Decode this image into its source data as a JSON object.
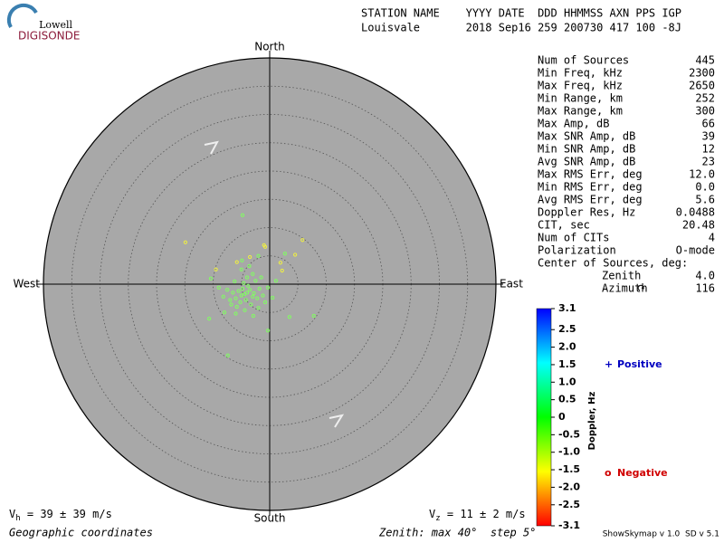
{
  "logo": {
    "top": "Lowell",
    "bottom": "DIGISONDE"
  },
  "header": {
    "line1": "STATION NAME    YYYY DATE  DDD HHMMSS AXN PPS IGP",
    "line2": "Louisvale       2018 Sep16 259 200730 417 100 -8J"
  },
  "stats": [
    {
      "label": "Num of Sources",
      "value": "445"
    },
    {
      "label": "Min Freq, kHz",
      "value": "2300"
    },
    {
      "label": "Max Freq, kHz",
      "value": "2650"
    },
    {
      "label": "Min Range, km",
      "value": "252"
    },
    {
      "label": "Max Range, km",
      "value": "300"
    },
    {
      "label": "Max Amp, dB",
      "value": "66"
    },
    {
      "label": "Max SNR Amp, dB",
      "value": "39"
    },
    {
      "label": "Min SNR Amp, dB",
      "value": "12"
    },
    {
      "label": "Avg SNR Amp, dB",
      "value": "23"
    },
    {
      "label": "Max RMS Err, deg",
      "value": "12.0"
    },
    {
      "label": "Min RMS Err, deg",
      "value": "0.0"
    },
    {
      "label": "Avg RMS Err, deg",
      "value": "5.6"
    },
    {
      "label": "Doppler Res, Hz",
      "value": "0.0488"
    },
    {
      "label": "CIT, sec",
      "value": "20.48"
    },
    {
      "label": "Num of CITs",
      "value": "4"
    },
    {
      "label": "Polarization",
      "value": "O-mode"
    }
  ],
  "center": {
    "title": "Center of Sources, deg:",
    "rows": [
      {
        "label": "Zenith",
        "value": "4.0"
      },
      {
        "label": "Azimuth",
        "value": "116"
      }
    ]
  },
  "colorbar": {
    "label": "Doppler, Hz",
    "lim": [
      -3.1,
      3.1
    ],
    "ticks": [
      3.1,
      2.5,
      {
        "value": 2,
        "label": "2.0"
      },
      1.5,
      {
        "value": 1,
        "label": "1.0"
      },
      0.5,
      0,
      -0.5,
      {
        "value": -1,
        "label": "-1.0"
      },
      -1.5,
      {
        "value": -2,
        "label": "-2.0"
      },
      -2.5,
      -3.1
    ],
    "colors": [
      "#0000ff",
      "#00ffff",
      "#00ff00",
      "#ffff00",
      "#ff0000"
    ]
  },
  "legend": {
    "positive": {
      "symbol": "+",
      "text": "Positive",
      "color": "#0000c0"
    },
    "negative": {
      "symbol": "o",
      "text": "Negative",
      "color": "#d00000"
    }
  },
  "footer": {
    "vh": {
      "symbol": "V",
      "sub": "h",
      "text": " = 39 ± 39 m/s"
    },
    "vz": {
      "symbol": "V",
      "sub": "z",
      "text": " = 11 ± 2 m/s"
    },
    "coords": "Geographic coordinates",
    "zenith": "Zenith: max 40°  step 5°",
    "version": "ShowSkymap v 1.0  SD v 5.1"
  },
  "chart_data": {
    "type": "scatter",
    "directions": {
      "north": "North",
      "south": "South",
      "east": "East",
      "west": "West"
    },
    "rlim": [
      0,
      40
    ],
    "rticks": [
      5,
      10,
      15,
      20,
      25,
      30,
      35,
      40
    ],
    "background": "#a8a8a8",
    "series": [
      {
        "color": "#80ff60",
        "x": [
          -4.5,
          -4,
          -5,
          -3.5,
          -6,
          -4.8,
          -3,
          -5.5,
          -4.2,
          -2.8,
          -6.5,
          -3.8,
          -5.2,
          -2.2,
          -4.6,
          -7,
          -1.8,
          -3.3,
          -6.2,
          -5.8,
          -2.5,
          -4,
          -1.2,
          -7.5,
          -3,
          -0.8,
          -6.8,
          -4.4,
          -2,
          -8.2,
          -5,
          -1.5,
          -3.6,
          -9,
          -0.3,
          -6,
          -2.9,
          0.5,
          -4.9,
          -10.7,
          -0.3,
          3.5,
          1.1,
          -8,
          -2,
          -10.4,
          7.8,
          -7.4,
          -4.8,
          2.7
        ],
        "y": [
          -1.8,
          -1.5,
          -2,
          -1,
          -2.5,
          -0.8,
          -2.2,
          -1.2,
          -2.8,
          -1.6,
          -1.5,
          -0.3,
          -3.2,
          -2.5,
          0.2,
          -2.8,
          -0.8,
          -3.6,
          0.5,
          -4,
          0.6,
          1.2,
          -2,
          -1,
          1.8,
          -3.2,
          -3.6,
          -4.6,
          -4.2,
          -2.2,
          2.6,
          1.2,
          3.2,
          -0.6,
          -0.6,
          -5.2,
          -5.6,
          -2.4,
          4.2,
          -6.1,
          -8.2,
          -5.8,
          0.6,
          -5,
          5,
          1,
          -5.6,
          -12.6,
          12.2,
          5.4
        ]
      },
      {
        "color": "#f0f040",
        "x": [
          -14.9,
          5.8,
          -0.8,
          1.9,
          -3.5,
          -5.8,
          -9.5,
          2.2,
          -1,
          4.5
        ],
        "y": [
          7.4,
          7.8,
          6.6,
          3.8,
          4.8,
          3.9,
          2.6,
          2.4,
          6.9,
          5.2
        ]
      }
    ]
  }
}
